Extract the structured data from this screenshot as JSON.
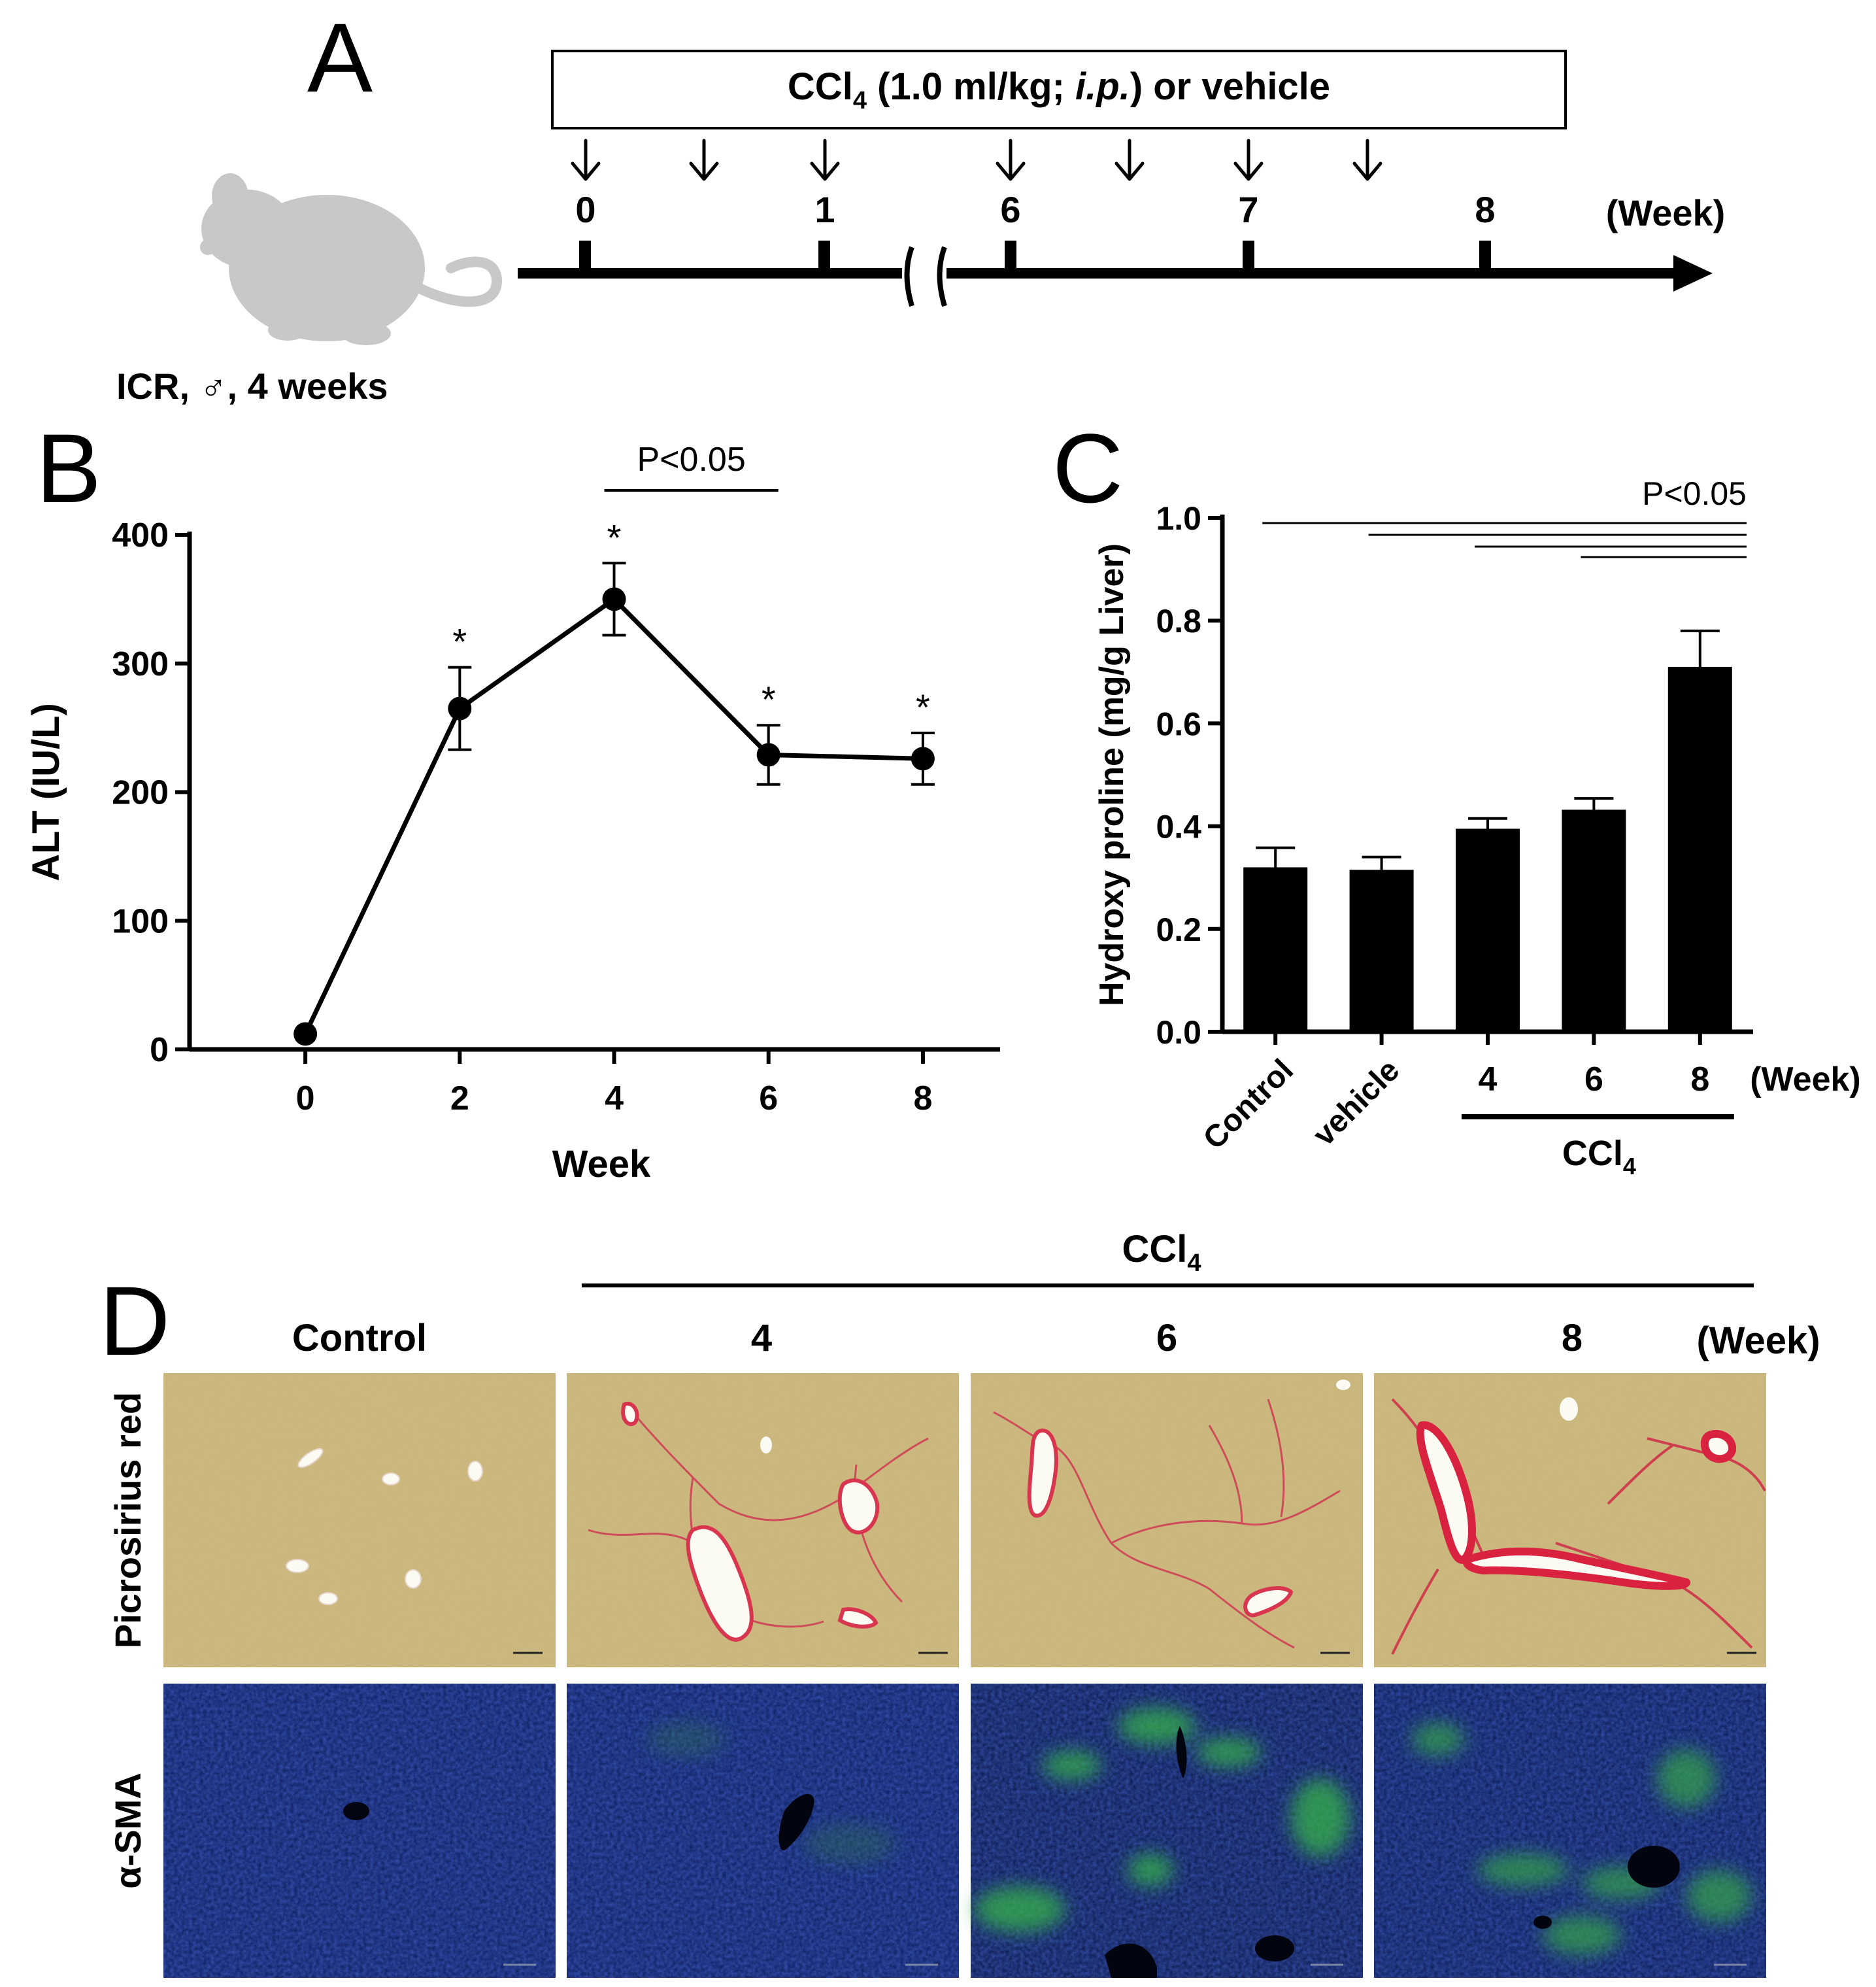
{
  "panels": {
    "A": {
      "letter": "A",
      "box_label_pre": "CCl",
      "box_label_sub": "4",
      "box_label_mid": " (1.0 ml/kg; ",
      "box_label_ital": "i.p.",
      "box_label_post": ") or vehicle",
      "timeline_ticks": [
        "0",
        "1",
        "6",
        "7",
        "8"
      ],
      "week_unit": "(Week)",
      "mouse_label": "ICR, ♂, 4 weeks",
      "mouse_icon": "mouse-icon"
    },
    "B": {
      "letter": "B"
    },
    "C": {
      "letter": "C"
    },
    "D": {
      "letter": "D",
      "group_pre": "CCl",
      "group_sub": "4",
      "columns": [
        "Control",
        "4",
        "6",
        "8"
      ],
      "week_unit": "(Week)",
      "rows": [
        "Picrosirius red",
        "α-SMA"
      ]
    }
  },
  "chart_data": [
    {
      "type": "line",
      "panel": "B",
      "x": [
        0,
        2,
        4,
        6,
        8
      ],
      "series": [
        {
          "values": [
            12,
            265,
            350,
            229,
            226
          ],
          "error": [
            3,
            32,
            28,
            23,
            20
          ]
        }
      ],
      "significance": [
        "",
        "*",
        "*",
        "*",
        "*"
      ],
      "bracket": {
        "label": "P<0.05",
        "from": 4,
        "to": 6
      },
      "xlabel": "Week",
      "ylabel": "ALT (IU/L)",
      "ylim": [
        0,
        400
      ],
      "yticks": [
        0,
        100,
        200,
        300,
        400
      ],
      "xticks": [
        0,
        2,
        4,
        6,
        8
      ],
      "grid": false
    },
    {
      "type": "bar",
      "panel": "C",
      "categories": [
        "Control",
        "vehicle",
        "4",
        "6",
        "8"
      ],
      "values": [
        0.32,
        0.315,
        0.395,
        0.432,
        0.71
      ],
      "error": [
        0.038,
        0.025,
        0.02,
        0.022,
        0.07
      ],
      "ylabel": "Hydroxy proline (mg/g Liver)",
      "ylim": [
        0,
        1.0
      ],
      "yticks": [
        "0.0",
        "0.2",
        "0.4",
        "0.6",
        "0.8",
        "1.0"
      ],
      "week_unit": "(Week)",
      "group_pre": "CCl",
      "group_sub": "4",
      "significance_label": "P<0.05",
      "grid": false,
      "colors": {
        "bar": "#000000"
      }
    }
  ]
}
